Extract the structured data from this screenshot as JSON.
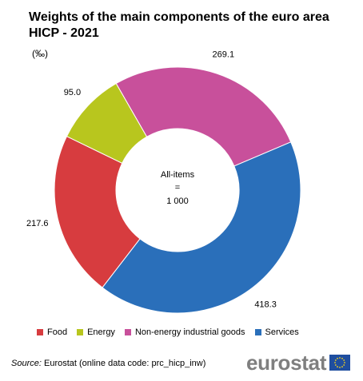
{
  "title": "Weights of the main components of the euro area HICP - 2021",
  "unit": "(‰)",
  "center": {
    "line1": "All-items",
    "line2": "=",
    "line3": "1 000"
  },
  "chart_data": {
    "type": "pie",
    "donut": true,
    "title": "Weights of the main components of the euro area HICP - 2021",
    "ylabel": "(‰)",
    "categories": [
      "Food",
      "Energy",
      "Non-energy industrial goods",
      "Services"
    ],
    "values": [
      217.6,
      95.0,
      269.1,
      418.3
    ],
    "value_labels": [
      "217.6",
      "95.0",
      "269.1",
      "418.3"
    ],
    "colors": [
      "#d73c3f",
      "#b8c61e",
      "#c8509b",
      "#2a6fba"
    ],
    "legend_position": "bottom"
  },
  "legend": [
    {
      "label": "Food",
      "color": "#d73c3f"
    },
    {
      "label": "Energy",
      "color": "#b8c61e"
    },
    {
      "label": "Non-energy industrial goods",
      "color": "#c8509b"
    },
    {
      "label": "Services",
      "color": "#2a6fba"
    }
  ],
  "source": {
    "prefix": "Source:",
    "text": "Eurostat (online data code: prc_hicp_inw)"
  },
  "logo": {
    "text": "eurostat"
  }
}
